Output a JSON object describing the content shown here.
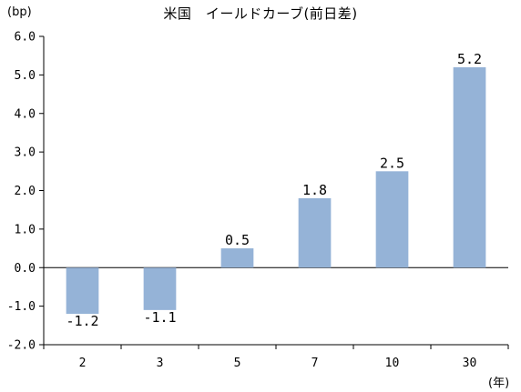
{
  "chart_data": {
    "type": "bar",
    "title": "米国　イールドカーブ(前日差)",
    "ylabel": "(bp)",
    "xlabel": "(年)",
    "categories": [
      "2",
      "3",
      "5",
      "7",
      "10",
      "30"
    ],
    "values": [
      -1.2,
      -1.1,
      0.5,
      1.8,
      2.5,
      5.2
    ],
    "data_labels": [
      "-1.2",
      "-1.1",
      "0.5",
      "1.8",
      "2.5",
      "5.2"
    ],
    "ylim": [
      -2.0,
      6.0
    ],
    "yticks": [
      "6.0",
      "5.0",
      "4.0",
      "3.0",
      "2.0",
      "1.0",
      "0.0",
      "-1.0",
      "-2.0"
    ],
    "ytick_values": [
      6,
      5,
      4,
      3,
      2,
      1,
      0,
      -1,
      -2
    ],
    "grid": false,
    "legend": "none",
    "bar_color": "#95b3d7"
  }
}
